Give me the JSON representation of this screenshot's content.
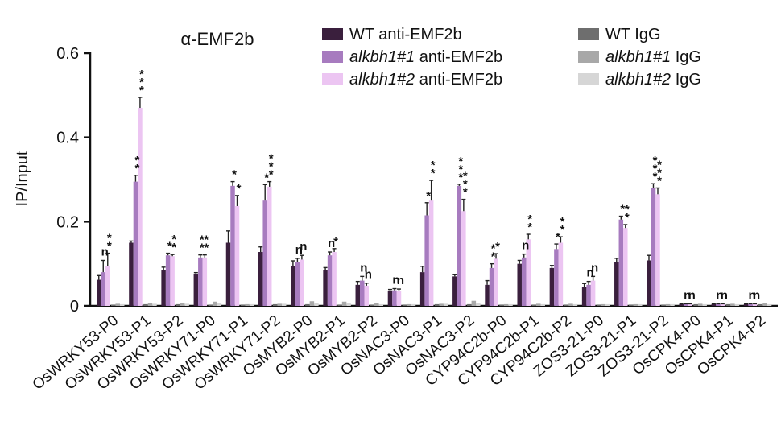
{
  "chart_data": {
    "type": "bar",
    "title": "α-EMF2b",
    "ylabel": "IP/Input",
    "xlabel": "",
    "ylim": [
      0,
      0.6
    ],
    "yticks": [
      0,
      0.2,
      0.4,
      0.6
    ],
    "yticks_labels": [
      "0",
      "0.2",
      "0.4",
      "0.6"
    ],
    "legend_position": "top",
    "categories": [
      "OsWRKY53-P0",
      "OsWRKY53-P1",
      "OsWRKY53-P2",
      "OsWRKY71-P0",
      "OsWRKY71-P1",
      "OsWRKY71-P2",
      "OsMYB2-P0",
      "OsMYB2-P1",
      "OsMYB2-P2",
      "OsNAC3-P0",
      "OsNAC3-P1",
      "OsNAC3-P2",
      "CYP94C2b-P0",
      "CYP94C2b-P1",
      "CYP94C2b-P2",
      "ZOS3-21-P0",
      "ZOS3-21-P1",
      "ZOS3-21-P2",
      "OsCPK4-P0",
      "OsCPK4-P1",
      "OsCPK4-P2"
    ],
    "series": [
      {
        "name": "WT anti-EMF2b",
        "name_italic": "WT",
        "name_rest": " anti-EMF2b",
        "italic": false,
        "color": "#3a1f3d",
        "values": [
          0.062,
          0.15,
          0.085,
          0.075,
          0.15,
          0.128,
          0.095,
          0.085,
          0.05,
          0.035,
          0.08,
          0.07,
          0.05,
          0.1,
          0.09,
          0.045,
          0.105,
          0.108,
          0.004,
          0.004,
          0.004
        ],
        "errors": [
          0.01,
          0.004,
          0.007,
          0.004,
          0.028,
          0.012,
          0.012,
          0.006,
          0.008,
          0.004,
          0.014,
          0.004,
          0.01,
          0.008,
          0.006,
          0.008,
          0.008,
          0.012,
          0.001,
          0.001,
          0.001
        ]
      },
      {
        "name": "alkbh1#1 anti-EMF2b",
        "name_italic": "alkbh1#1",
        "name_rest": " anti-EMF2b",
        "italic": true,
        "color": "#a77bbf",
        "values": [
          0.08,
          0.295,
          0.12,
          0.115,
          0.285,
          0.25,
          0.105,
          0.12,
          0.06,
          0.037,
          0.215,
          0.285,
          0.09,
          0.115,
          0.135,
          0.05,
          0.205,
          0.28,
          0.004,
          0.004,
          0.004
        ],
        "errors": [
          0.028,
          0.015,
          0.005,
          0.006,
          0.01,
          0.038,
          0.008,
          0.008,
          0.01,
          0.004,
          0.03,
          0.004,
          0.01,
          0.008,
          0.012,
          0.008,
          0.008,
          0.01,
          0.001,
          0.001,
          0.001
        ]
      },
      {
        "name": "alkbh1#2 anti-EMF2b",
        "name_italic": "alkbh1#2",
        "name_rest": " anti-EMF2b",
        "italic": true,
        "color": "#ecc5f2",
        "values": [
          0.095,
          0.47,
          0.118,
          0.115,
          0.237,
          0.283,
          0.11,
          0.128,
          0.048,
          0.035,
          0.25,
          0.225,
          0.112,
          0.158,
          0.15,
          0.06,
          0.185,
          0.265,
          0.004,
          0.004,
          0.004
        ],
        "errors": [
          0.03,
          0.025,
          0.004,
          0.006,
          0.025,
          0.012,
          0.01,
          0.008,
          0.006,
          0.005,
          0.048,
          0.028,
          0.012,
          0.012,
          0.014,
          0.01,
          0.008,
          0.015,
          0.001,
          0.001,
          0.001
        ]
      },
      {
        "name": "WT IgG",
        "name_italic": "WT",
        "name_rest": " IgG",
        "italic": false,
        "color": "#6e6e6e",
        "values": [
          0.003,
          0.004,
          0.004,
          0.003,
          0.003,
          0.004,
          0.004,
          0.003,
          0.003,
          0.003,
          0.004,
          0.004,
          0.003,
          0.003,
          0.003,
          0.003,
          0.003,
          0.003,
          0.004,
          0.004,
          0.004
        ]
      },
      {
        "name": "alkbh1#1 IgG",
        "name_italic": "alkbh1#1",
        "name_rest": " IgG",
        "italic": true,
        "color": "#a8a8a8",
        "values": [
          0.005,
          0.006,
          0.006,
          0.01,
          0.004,
          0.005,
          0.011,
          0.01,
          0.006,
          0.004,
          0.005,
          0.012,
          0.004,
          0.005,
          0.005,
          0.004,
          0.004,
          0.004,
          0.005,
          0.005,
          0.006
        ]
      },
      {
        "name": "alkbh1#2 IgG",
        "name_italic": "alkbh1#2",
        "name_rest": " IgG",
        "italic": true,
        "color": "#d6d6d6",
        "values": [
          0.004,
          0.005,
          0.005,
          0.006,
          0.004,
          0.005,
          0.007,
          0.006,
          0.004,
          0.004,
          0.005,
          0.006,
          0.004,
          0.004,
          0.004,
          0.004,
          0.004,
          0.004,
          0.004,
          0.004,
          0.004
        ]
      }
    ],
    "significance": [
      [
        "n",
        "**",
        "*"
      ],
      [
        "**",
        "***"
      ],
      [
        "*",
        "**"
      ],
      [
        "**",
        "**"
      ],
      [
        "*",
        "*"
      ],
      [
        "*",
        "***"
      ],
      [
        "n",
        "n"
      ],
      [
        "n",
        "*"
      ],
      [
        "n",
        "n"
      ],
      [
        "n",
        "n"
      ],
      [
        "*",
        "**"
      ],
      [
        "***",
        "***"
      ],
      [
        "**",
        "*"
      ],
      [
        "n",
        "**"
      ],
      [
        "*",
        "**"
      ],
      [
        "n",
        "n"
      ],
      [
        "*",
        "**"
      ],
      [
        "***",
        "***"
      ],
      [
        "n",
        "n"
      ],
      [
        "n",
        "n"
      ],
      [
        "n",
        "n"
      ]
    ]
  }
}
